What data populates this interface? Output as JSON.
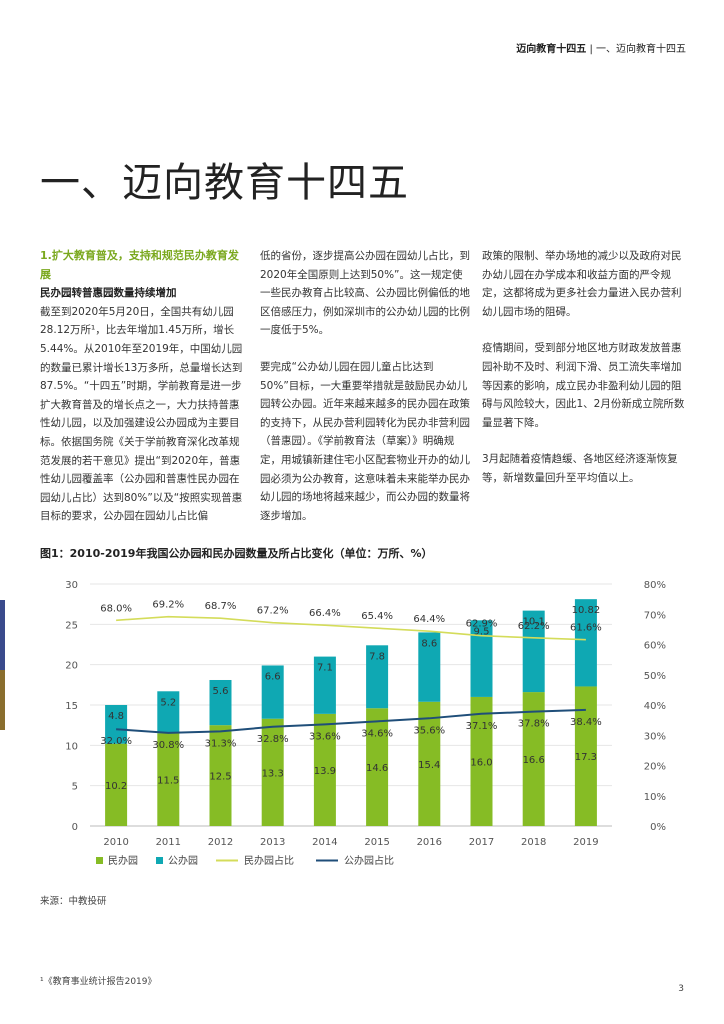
{
  "header": {
    "bold": "迈向教育十四五",
    "sep": " | ",
    "rest": "一、迈向教育十四五"
  },
  "page_title": "一、迈向教育十四五",
  "section": {
    "heading": "1.扩大教育普及，支持和规范民办教育发展",
    "subheading": "民办园转普惠园数量持续增加",
    "col1_text": "截至到2020年5月20日，全国共有幼儿园28.12万所¹，比去年增加1.45万所，增长5.44%。从2010年至2019年，中国幼儿园的数量已累计增长13万多所，总量增长达到87.5%。“十四五”时期，学前教育是进一步扩大教育普及的增长点之一，大力扶持普惠性幼儿园，以及加强建设公办园成为主要目标。依据国务院《关于学前教育深化改革规范发展的若干意见》提出“到2020年，普惠性幼儿园覆盖率（公办园和普惠性民办园在园幼儿占比）达到80%”以及“按照实现普惠目标的要求，公办园在园幼儿占比偏",
    "col2_p1": "低的省份，逐步提高公办园在园幼儿占比，到2020年全国原则上达到50%”。这一规定使一些民办教育占比较高、公办园比例偏低的地区倍感压力，例如深圳市的公办幼儿园的比例一度低于5%。",
    "col2_p2": "要完成“公办幼儿园在园儿童占比达到50%”目标，一大重要举措就是鼓励民办幼儿园转公办园。近年来越来越多的民办园在政策的支持下，从民办营利园转化为民办非营利园（普惠园）。《学前教育法（草案）》明确规定，用城镇新建住宅小区配套物业开办的幼儿园必须为公办教育，这意味着未来能举办民办幼儿园的场地将越来越少，而公办园的数量将逐步增加。",
    "col3_p1": "政策的限制、举办场地的减少以及政府对民办幼儿园在办学成本和收益方面的严令规定，这都将成为更多社会力量进入民办营利幼儿园市场的阻碍。",
    "col3_p2": "疫情期间，受到部分地区地方财政发放普惠园补助不及时、利润下滑、员工流失率增加等因素的影响，成立民办非盈利幼儿园的阻碍与风险较大，因此1、2月份新成立院所数量显著下降。",
    "col3_p3": "3月起随着疫情趋缓、各地区经济逐渐恢复等，新增数量回升至平均值以上。"
  },
  "figure_title": "图1：2010-2019年我国公办园和民办园数量及所占比变化（单位：万所、%）",
  "chart_data": {
    "type": "bar",
    "stacked": true,
    "title": "图1：2010-2019年我国公办园和民办园数量及所占比变化（单位：万所、%）",
    "categories": [
      "2010",
      "2011",
      "2012",
      "2013",
      "2014",
      "2015",
      "2016",
      "2017",
      "2018",
      "2019"
    ],
    "series": [
      {
        "name": "民办园",
        "kind": "bar",
        "color": "#86bc25",
        "values": [
          10.2,
          11.5,
          12.5,
          13.3,
          13.9,
          14.6,
          15.4,
          16.0,
          16.6,
          17.3
        ],
        "labels": [
          "10.2",
          "11.5",
          "12.5",
          "13.3",
          "13.9",
          "14.6",
          "15.4",
          "16.0",
          "16.6",
          "17.3"
        ]
      },
      {
        "name": "公办园",
        "kind": "bar",
        "color": "#0fa8b3",
        "values": [
          4.8,
          5.2,
          5.6,
          6.6,
          7.1,
          7.8,
          8.6,
          9.5,
          10.1,
          10.82
        ],
        "labels": [
          "4.8",
          "5.2",
          "5.6",
          "6.6",
          "7.1",
          "7.8",
          "8.6",
          "9.5",
          "10.1",
          "10.82"
        ]
      },
      {
        "name": "民办园占比",
        "kind": "line",
        "axis": "right",
        "color": "#d4dc5a",
        "values": [
          68.0,
          69.2,
          68.7,
          67.2,
          66.4,
          65.4,
          64.4,
          62.9,
          62.2,
          61.6
        ],
        "labels": [
          "68.0%",
          "69.2%",
          "68.7%",
          "67.2%",
          "66.4%",
          "65.4%",
          "64.4%",
          "62.9%",
          "62.2%",
          "61.6%"
        ]
      },
      {
        "name": "公办园占比",
        "kind": "line",
        "axis": "right",
        "color": "#1f4e79",
        "values": [
          32.0,
          30.8,
          31.3,
          32.8,
          33.6,
          34.6,
          35.6,
          37.1,
          37.8,
          38.4
        ],
        "labels": [
          "32.0%",
          "30.8%",
          "31.3%",
          "32.8%",
          "33.6%",
          "34.6%",
          "35.6%",
          "37.1%",
          "37.8%",
          "38.4%"
        ]
      }
    ],
    "ylim": [
      0,
      30
    ],
    "y_ticks": [
      "0",
      "5",
      "10",
      "15",
      "20",
      "25",
      "30"
    ],
    "y2lim": [
      0,
      80
    ],
    "y2_ticks": [
      "0%",
      "10%",
      "20%",
      "30%",
      "40%",
      "50%",
      "60%",
      "70%",
      "80%"
    ],
    "grid": true,
    "legend_position": "bottom-left"
  },
  "source": "来源：中教投研",
  "footnote": {
    "mark": "¹",
    "text": "《教育事业统计报告2019》"
  },
  "page_number": "3",
  "colors": {
    "accent_green": "#86bc25",
    "teal": "#0fa8b3",
    "navy": "#1f4e79",
    "light_line": "#d4dc5a"
  }
}
